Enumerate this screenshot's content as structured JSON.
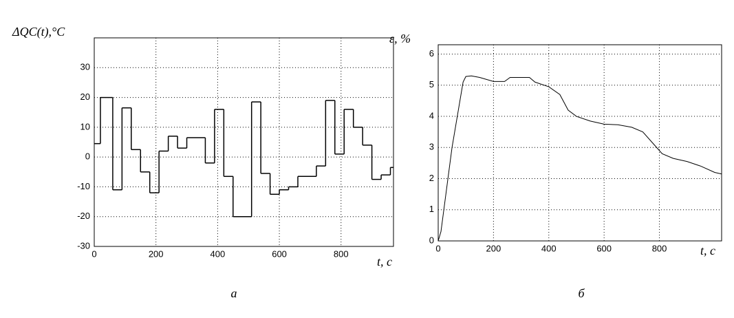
{
  "chart_data": [
    {
      "type": "step",
      "y_label": "ΔQC(t),°C",
      "x_label": "t, c",
      "caption": "а",
      "x": [
        0,
        20,
        60,
        90,
        120,
        150,
        180,
        210,
        240,
        270,
        300,
        360,
        390,
        420,
        450,
        510,
        540,
        570,
        600,
        630,
        660,
        720,
        750,
        780,
        810,
        840,
        870,
        900,
        930,
        960
      ],
      "values": [
        4.5,
        20,
        -11,
        16.5,
        2.5,
        -5,
        -12,
        2,
        7,
        3,
        6.5,
        -2,
        16,
        -6.5,
        -20,
        18.5,
        -5.5,
        -12.5,
        -11,
        -10,
        -6.5,
        -3,
        19,
        1,
        16,
        10,
        4,
        -7.5,
        -6,
        -3.5
      ],
      "color": "#000000",
      "xlim": [
        0,
        970
      ],
      "xticks": [
        0,
        200,
        400,
        600,
        800
      ],
      "ylim": [
        -30,
        40
      ],
      "yticks": [
        -30,
        -20,
        -10,
        0,
        10,
        20,
        30
      ],
      "grid": true
    },
    {
      "type": "line",
      "y_label": "ε, %",
      "x_label": "t, c",
      "caption": "б",
      "x": [
        0,
        10,
        50,
        90,
        100,
        120,
        150,
        200,
        240,
        260,
        300,
        330,
        350,
        400,
        440,
        470,
        500,
        550,
        600,
        650,
        700,
        740,
        780,
        810,
        850,
        900,
        950,
        1000,
        1025
      ],
      "values": [
        0,
        0.3,
        3.0,
        5.1,
        5.28,
        5.3,
        5.25,
        5.12,
        5.12,
        5.25,
        5.25,
        5.25,
        5.1,
        4.95,
        4.7,
        4.2,
        4.0,
        3.85,
        3.75,
        3.73,
        3.65,
        3.5,
        3.1,
        2.8,
        2.65,
        2.55,
        2.4,
        2.2,
        2.15
      ],
      "color": "#000000",
      "xlim": [
        0,
        1025
      ],
      "xticks": [
        0,
        200,
        400,
        600,
        800
      ],
      "ylim": [
        0,
        6.3
      ],
      "yticks": [
        0,
        1,
        2,
        3,
        4,
        5,
        6
      ],
      "grid": true
    }
  ]
}
